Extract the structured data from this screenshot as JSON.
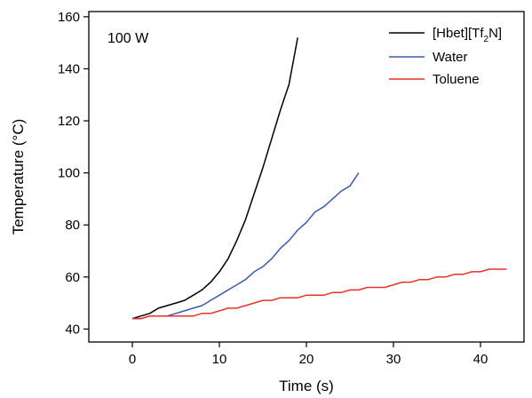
{
  "chart_data": {
    "type": "line",
    "annotation": "100 W",
    "xlabel": "Time (s)",
    "ylabel": "Temperature (°C)",
    "xlim": [
      -5,
      45
    ],
    "ylim": [
      35,
      162
    ],
    "xticks": [
      0,
      10,
      20,
      30,
      40
    ],
    "yticks": [
      40,
      60,
      80,
      100,
      120,
      140,
      160
    ],
    "grid": false,
    "legend": "top-right",
    "series": [
      {
        "name_main": "[Hbet][Tf",
        "name_sub": "2",
        "name_tail": "N]",
        "color": "#000000",
        "x": [
          0,
          1,
          2,
          3,
          4,
          5,
          6,
          7,
          8,
          9,
          10,
          11,
          12,
          13,
          14,
          15,
          16,
          17,
          18,
          19
        ],
        "y": [
          44,
          45,
          46,
          48,
          49,
          50,
          51,
          53,
          55,
          58,
          62,
          67,
          74,
          82,
          92,
          102,
          113,
          124,
          134,
          152
        ]
      },
      {
        "name": "Water",
        "color": "#3d5aa8",
        "x": [
          0,
          1,
          2,
          3,
          4,
          5,
          6,
          7,
          8,
          9,
          10,
          11,
          12,
          13,
          14,
          15,
          16,
          17,
          18,
          19,
          20,
          21,
          22,
          23,
          24,
          25,
          26
        ],
        "y": [
          44,
          44,
          45,
          45,
          45,
          46,
          47,
          48,
          49,
          51,
          53,
          55,
          57,
          59,
          62,
          64,
          67,
          71,
          74,
          78,
          81,
          85,
          87,
          90,
          93,
          95,
          100
        ]
      },
      {
        "name": "Toluene",
        "color": "#e8312a",
        "x": [
          0,
          1,
          2,
          3,
          4,
          5,
          6,
          7,
          8,
          9,
          10,
          11,
          12,
          13,
          14,
          15,
          16,
          17,
          18,
          19,
          20,
          21,
          22,
          23,
          24,
          25,
          26,
          27,
          28,
          29,
          30,
          31,
          32,
          33,
          34,
          35,
          36,
          37,
          38,
          39,
          40,
          41,
          42,
          43
        ],
        "y": [
          44,
          44,
          45,
          45,
          45,
          45,
          45,
          45,
          46,
          46,
          47,
          48,
          48,
          49,
          50,
          51,
          51,
          52,
          52,
          52,
          53,
          53,
          53,
          54,
          54,
          55,
          55,
          56,
          56,
          56,
          57,
          58,
          58,
          59,
          59,
          60,
          60,
          61,
          61,
          62,
          62,
          63,
          63,
          63
        ]
      }
    ]
  }
}
